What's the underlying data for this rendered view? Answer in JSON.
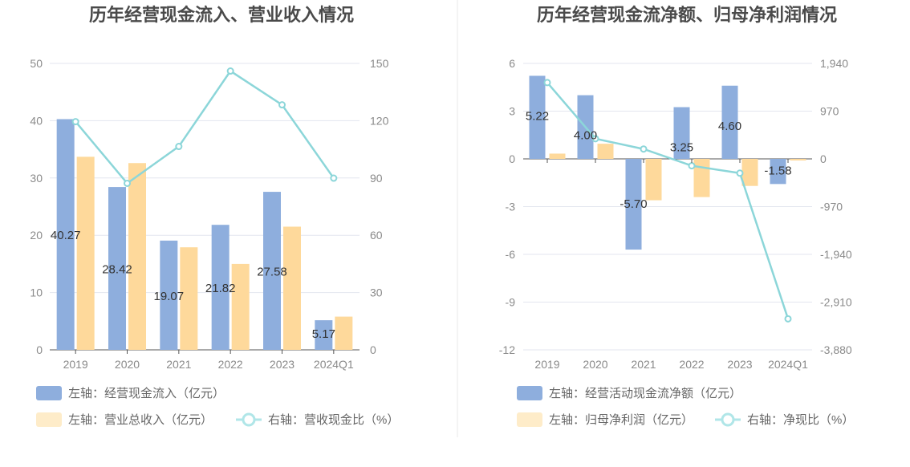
{
  "chart_data": [
    {
      "type": "bar",
      "title": "历年经营现金流入、营业收入情况",
      "categories": [
        "2019",
        "2020",
        "2021",
        "2022",
        "2023",
        "2024Q1"
      ],
      "y_left": {
        "ticks": [
          "0",
          "10",
          "20",
          "30",
          "40",
          "50"
        ],
        "range": [
          0,
          50
        ]
      },
      "y_right": {
        "ticks": [
          "0",
          "30",
          "60",
          "90",
          "120",
          "150"
        ],
        "range": [
          0,
          150
        ]
      },
      "series": [
        {
          "name": "左轴：经营现金流入（亿元）",
          "type": "bar",
          "axis": "left",
          "color": "#8eaedd",
          "values": [
            40.27,
            28.42,
            19.07,
            21.82,
            27.58,
            5.17
          ],
          "labels": [
            "40.27",
            "28.42",
            "19.07",
            "21.82",
            "27.58",
            "5.17"
          ]
        },
        {
          "name": "左轴：营业总收入（亿元）",
          "type": "bar",
          "axis": "left",
          "color": "#fed99b",
          "values": [
            33.7,
            32.6,
            17.9,
            15.0,
            21.5,
            5.8
          ]
        },
        {
          "name": "右轴：营收现金比（%）",
          "type": "line",
          "axis": "right",
          "color": "#8cd6d9",
          "values": [
            119.5,
            87.2,
            106.5,
            146.0,
            128.3,
            89.9
          ]
        }
      ],
      "grid": true
    },
    {
      "type": "bar",
      "title": "历年经营现金流净额、归母净利润情况",
      "categories": [
        "2019",
        "2020",
        "2021",
        "2022",
        "2023",
        "2024Q1"
      ],
      "y_left": {
        "ticks": [
          "-12",
          "-9",
          "-6",
          "-3",
          "0",
          "3",
          "6"
        ],
        "range": [
          -12,
          6
        ]
      },
      "y_right": {
        "ticks": [
          "-3,880",
          "-2,910",
          "-1,940",
          "-970",
          "0",
          "970",
          "1,940"
        ],
        "range": [
          -3880,
          1940
        ]
      },
      "series": [
        {
          "name": "左轴：经营活动现金流净额（亿元）",
          "type": "bar",
          "axis": "left",
          "color": "#8eaedd",
          "values": [
            5.22,
            4.0,
            -5.7,
            3.25,
            4.6,
            -1.58
          ],
          "labels": [
            "5.22",
            "4.00",
            "-5.70",
            "3.25",
            "4.60",
            "-1.58"
          ]
        },
        {
          "name": "左轴：归母净利润（亿元）",
          "type": "bar",
          "axis": "left",
          "color": "#fed99b",
          "values": [
            0.33,
            0.95,
            -2.6,
            -2.4,
            -1.7,
            -0.1
          ]
        },
        {
          "name": "右轴：净现比（%）",
          "type": "line",
          "axis": "right",
          "color": "#8cd6d9",
          "values": [
            1550,
            410,
            200,
            -140,
            -290,
            -3250
          ]
        }
      ],
      "grid": true
    }
  ]
}
